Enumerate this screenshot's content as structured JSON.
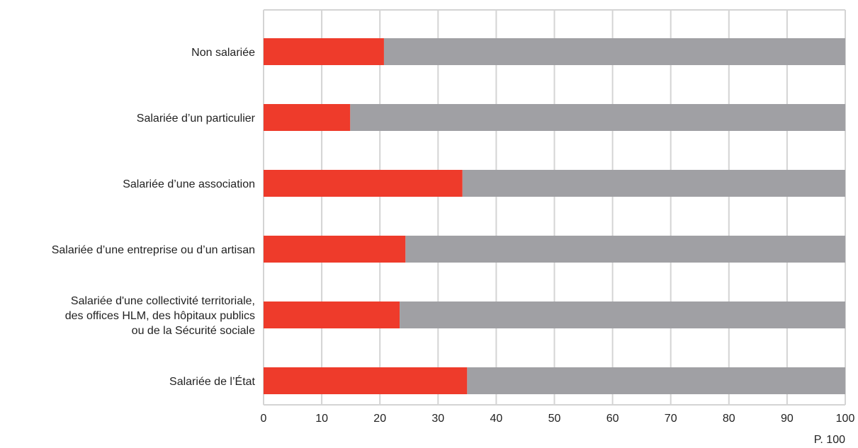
{
  "chart_data": {
    "type": "bar",
    "orientation": "horizontal",
    "stacked": true,
    "categories": [
      "Non salariée",
      "Salariée d’un particulier",
      "Salariée d’une association",
      "Salariée d’une entreprise ou d’un artisan",
      [
        "Salariée d'une collectivité territoriale,",
        "des offices HLM, des hôpitaux publics",
        "ou de la Sécurité sociale"
      ],
      "Salariée de l’État"
    ],
    "series": [
      {
        "values": [
          20.7,
          14.9,
          34.2,
          24.4,
          23.4,
          35.0
        ],
        "color": "#ee3b2b"
      },
      {
        "values": [
          79.3,
          85.1,
          65.8,
          75.6,
          76.6,
          65.0
        ],
        "color": "#a0a0a4"
      }
    ],
    "xlim": [
      0,
      100
    ],
    "xticks": [
      "0",
      "10",
      "20",
      "30",
      "40",
      "50",
      "60",
      "70",
      "80",
      "90",
      "100"
    ],
    "unit_label": "P. 100",
    "grid": true,
    "grid_color": "#d4d4d4",
    "legend": "none"
  }
}
